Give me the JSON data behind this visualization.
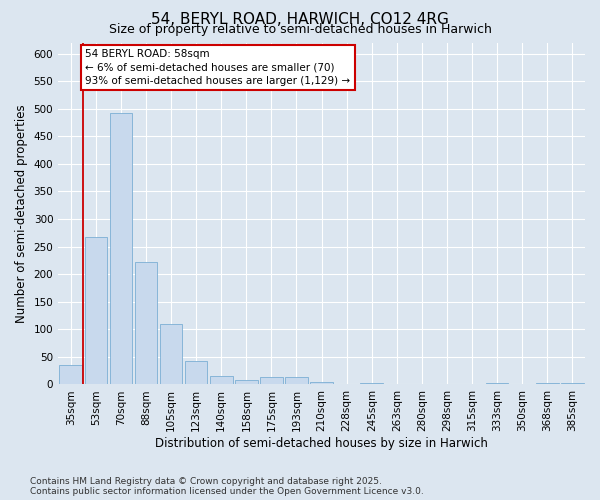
{
  "title": "54, BERYL ROAD, HARWICH, CO12 4RG",
  "subtitle": "Size of property relative to semi-detached houses in Harwich",
  "xlabel": "Distribution of semi-detached houses by size in Harwich",
  "ylabel": "Number of semi-detached properties",
  "bar_color": "#c8d9ed",
  "bar_edge_color": "#7bafd4",
  "bg_color": "#dce6f0",
  "grid_color": "#ffffff",
  "categories": [
    "35sqm",
    "53sqm",
    "70sqm",
    "88sqm",
    "105sqm",
    "123sqm",
    "140sqm",
    "158sqm",
    "175sqm",
    "193sqm",
    "210sqm",
    "228sqm",
    "245sqm",
    "263sqm",
    "280sqm",
    "298sqm",
    "315sqm",
    "333sqm",
    "350sqm",
    "368sqm",
    "385sqm"
  ],
  "values": [
    35,
    268,
    492,
    222,
    109,
    42,
    16,
    8,
    14,
    14,
    5,
    1,
    2,
    1,
    0,
    0,
    0,
    3,
    0,
    2,
    3
  ],
  "ylim": [
    0,
    620
  ],
  "yticks": [
    0,
    50,
    100,
    150,
    200,
    250,
    300,
    350,
    400,
    450,
    500,
    550,
    600
  ],
  "annotation_text": "54 BERYL ROAD: 58sqm\n← 6% of semi-detached houses are smaller (70)\n93% of semi-detached houses are larger (1,129) →",
  "annotation_box_facecolor": "#ffffff",
  "annotation_edge_color": "#cc0000",
  "red_line_color": "#cc0000",
  "footer": "Contains HM Land Registry data © Crown copyright and database right 2025.\nContains public sector information licensed under the Open Government Licence v3.0.",
  "title_fontsize": 11,
  "subtitle_fontsize": 9,
  "axis_label_fontsize": 8.5,
  "tick_fontsize": 7.5,
  "annotation_fontsize": 7.5,
  "footer_fontsize": 6.5
}
